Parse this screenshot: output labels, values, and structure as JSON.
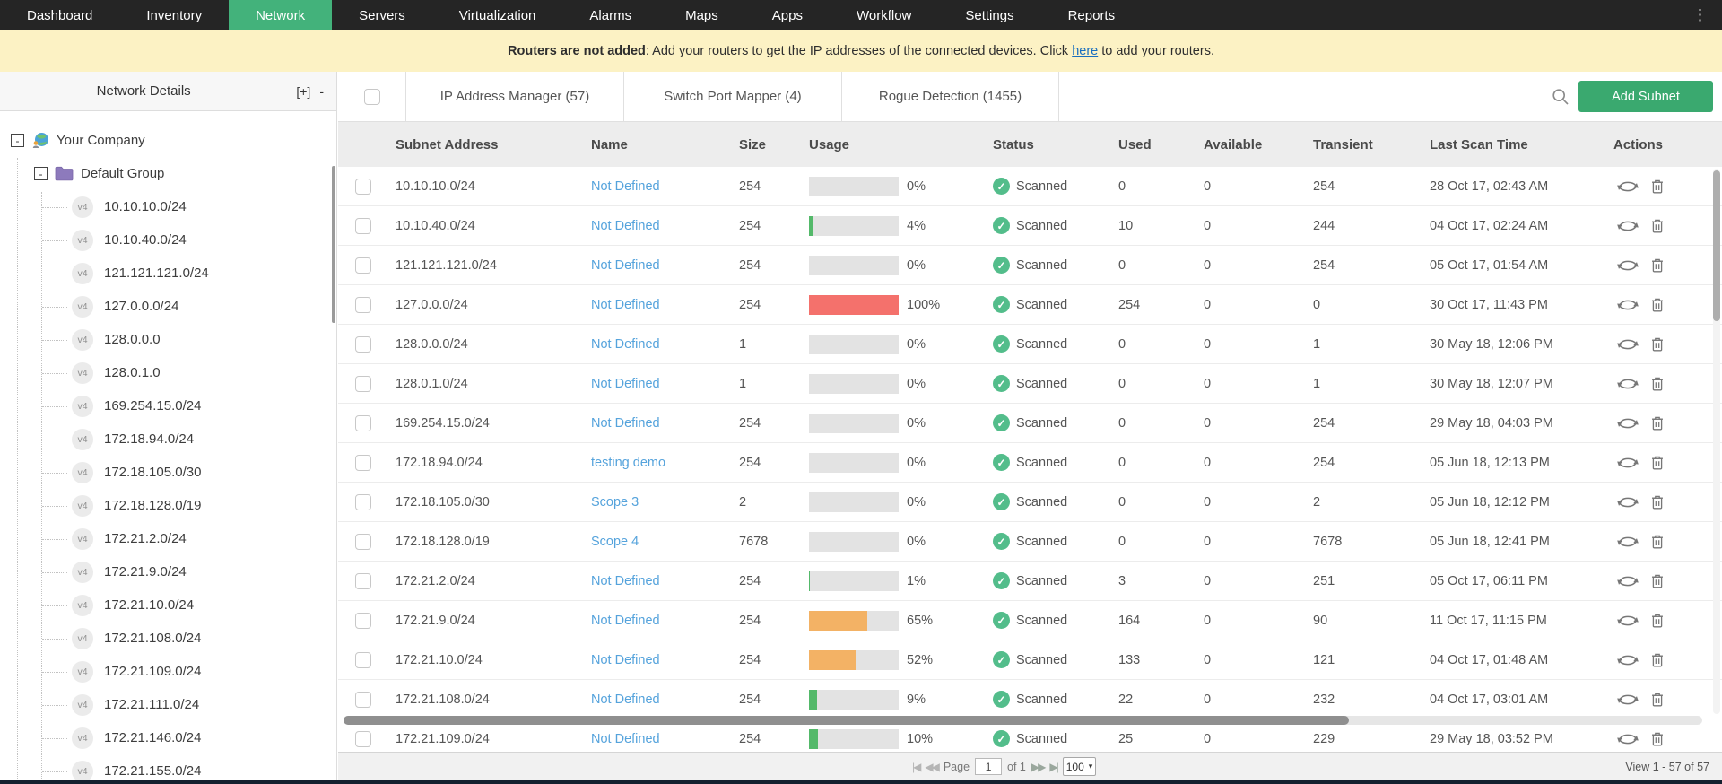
{
  "nav": {
    "items": [
      {
        "label": "Dashboard",
        "active": false
      },
      {
        "label": "Inventory",
        "active": false
      },
      {
        "label": "Network",
        "active": true
      },
      {
        "label": "Servers",
        "active": false
      },
      {
        "label": "Virtualization",
        "active": false
      },
      {
        "label": "Alarms",
        "active": false
      },
      {
        "label": "Maps",
        "active": false
      },
      {
        "label": "Apps",
        "active": false
      },
      {
        "label": "Workflow",
        "active": false
      },
      {
        "label": "Settings",
        "active": false
      },
      {
        "label": "Reports",
        "active": false
      }
    ],
    "kebab_glyph": "⋮"
  },
  "banner": {
    "bold_text": "Routers are not added",
    "message": ": Add your routers to get the IP addresses of the connected devices. Click ",
    "link_text": "here",
    "message_after": " to add your routers."
  },
  "sidebar": {
    "title": "Network Details",
    "expand_label": "[+]",
    "collapse_label": "-",
    "tree": {
      "root_label": "Your Company",
      "group_label": "Default Group",
      "collapse_glyph": "-",
      "badge": "v4",
      "subnets": [
        "10.10.10.0/24",
        "10.10.40.0/24",
        "121.121.121.0/24",
        "127.0.0.0/24",
        "128.0.0.0",
        "128.0.1.0",
        "169.254.15.0/24",
        "172.18.94.0/24",
        "172.18.105.0/30",
        "172.18.128.0/19",
        "172.21.2.0/24",
        "172.21.9.0/24",
        "172.21.10.0/24",
        "172.21.108.0/24",
        "172.21.109.0/24",
        "172.21.111.0/24",
        "172.21.146.0/24",
        "172.21.155.0/24"
      ]
    }
  },
  "toolbar": {
    "tabs": [
      "IP Address Manager (57)",
      "Switch Port Mapper (4)",
      "Rogue Detection (1455)"
    ],
    "add_button": "Add Subnet"
  },
  "table": {
    "columns": [
      "Subnet Address",
      "Name",
      "Size",
      "Usage",
      "Status",
      "Used",
      "Available",
      "Transient",
      "Last Scan Time",
      "Actions"
    ],
    "rows": [
      {
        "subnet": "10.10.10.0/24",
        "name": "Not Defined",
        "size": "254",
        "usage": 0,
        "status": "Scanned",
        "used": "0",
        "available": "0",
        "transient": "254",
        "last_scan": "28 Oct 17, 02:43 AM"
      },
      {
        "subnet": "10.10.40.0/24",
        "name": "Not Defined",
        "size": "254",
        "usage": 4,
        "status": "Scanned",
        "used": "10",
        "available": "0",
        "transient": "244",
        "last_scan": "04 Oct 17, 02:24 AM"
      },
      {
        "subnet": "121.121.121.0/24",
        "name": "Not Defined",
        "size": "254",
        "usage": 0,
        "status": "Scanned",
        "used": "0",
        "available": "0",
        "transient": "254",
        "last_scan": "05 Oct 17, 01:54 AM"
      },
      {
        "subnet": "127.0.0.0/24",
        "name": "Not Defined",
        "size": "254",
        "usage": 100,
        "status": "Scanned",
        "used": "254",
        "available": "0",
        "transient": "0",
        "last_scan": "30 Oct 17, 11:43 PM"
      },
      {
        "subnet": "128.0.0.0/24",
        "name": "Not Defined",
        "size": "1",
        "usage": 0,
        "status": "Scanned",
        "used": "0",
        "available": "0",
        "transient": "1",
        "last_scan": "30 May 18, 12:06 PM"
      },
      {
        "subnet": "128.0.1.0/24",
        "name": "Not Defined",
        "size": "1",
        "usage": 0,
        "status": "Scanned",
        "used": "0",
        "available": "0",
        "transient": "1",
        "last_scan": "30 May 18, 12:07 PM"
      },
      {
        "subnet": "169.254.15.0/24",
        "name": "Not Defined",
        "size": "254",
        "usage": 0,
        "status": "Scanned",
        "used": "0",
        "available": "0",
        "transient": "254",
        "last_scan": "29 May 18, 04:03 PM"
      },
      {
        "subnet": "172.18.94.0/24",
        "name": "testing demo",
        "size": "254",
        "usage": 0,
        "status": "Scanned",
        "used": "0",
        "available": "0",
        "transient": "254",
        "last_scan": "05 Jun 18, 12:13 PM"
      },
      {
        "subnet": "172.18.105.0/30",
        "name": "Scope 3",
        "size": "2",
        "usage": 0,
        "status": "Scanned",
        "used": "0",
        "available": "0",
        "transient": "2",
        "last_scan": "05 Jun 18, 12:12 PM"
      },
      {
        "subnet": "172.18.128.0/19",
        "name": "Scope 4",
        "size": "7678",
        "usage": 0,
        "status": "Scanned",
        "used": "0",
        "available": "0",
        "transient": "7678",
        "last_scan": "05 Jun 18, 12:41 PM"
      },
      {
        "subnet": "172.21.2.0/24",
        "name": "Not Defined",
        "size": "254",
        "usage": 1,
        "status": "Scanned",
        "used": "3",
        "available": "0",
        "transient": "251",
        "last_scan": "05 Oct 17, 06:11 PM"
      },
      {
        "subnet": "172.21.9.0/24",
        "name": "Not Defined",
        "size": "254",
        "usage": 65,
        "status": "Scanned",
        "used": "164",
        "available": "0",
        "transient": "90",
        "last_scan": "11 Oct 17, 11:15 PM"
      },
      {
        "subnet": "172.21.10.0/24",
        "name": "Not Defined",
        "size": "254",
        "usage": 52,
        "status": "Scanned",
        "used": "133",
        "available": "0",
        "transient": "121",
        "last_scan": "04 Oct 17, 01:48 AM"
      },
      {
        "subnet": "172.21.108.0/24",
        "name": "Not Defined",
        "size": "254",
        "usage": 9,
        "status": "Scanned",
        "used": "22",
        "available": "0",
        "transient": "232",
        "last_scan": "04 Oct 17, 03:01 AM"
      },
      {
        "subnet": "172.21.109.0/24",
        "name": "Not Defined",
        "size": "254",
        "usage": 10,
        "status": "Scanned",
        "used": "25",
        "available": "0",
        "transient": "229",
        "last_scan": "29 May 18, 03:52 PM"
      }
    ]
  },
  "pagination": {
    "first_glyph": "|◀",
    "prev_glyph": "◀◀",
    "page_label": "Page",
    "page_value": "1",
    "of_label": "of 1",
    "next_glyph": "▶▶",
    "last_glyph": "▶|",
    "page_size": "100",
    "caret_glyph": "▾",
    "view_text": "View 1 - 57 of 57"
  },
  "colors": {
    "nav_active": "#43b27b",
    "add_button": "#3aa96f",
    "status_green": "#53bd8b",
    "link_blue": "#55a3dc",
    "banner_bg": "#fcf2c4",
    "usage_low": "#54b96a",
    "usage_mid": "#f3b265",
    "usage_high": "#f4716c"
  }
}
